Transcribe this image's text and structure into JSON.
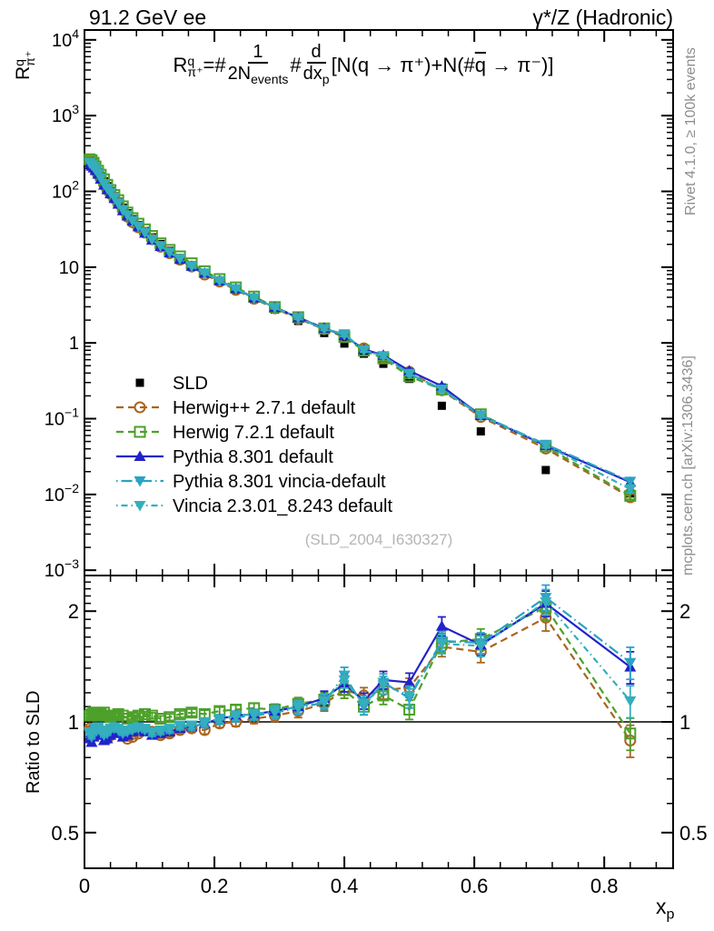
{
  "header": {
    "title_left": "91.2 GeV ee",
    "title_right": "γ*/Z (Hadronic)"
  },
  "side_notes": {
    "rivet": "Rivet 4.1.0, ≥ 100k events",
    "mcplots": "mcplots.cern.ch [arXiv:1306.3436]"
  },
  "watermark": "(SLD_2004_I630327)",
  "axes": {
    "main_ylabel": {
      "base": "R",
      "sup": "q",
      "sub": "π⁺"
    },
    "ratio_ylabel": "Ratio to SLD",
    "xlabel": {
      "base": "x",
      "sub": "p"
    }
  },
  "formula": {
    "r_base": "R",
    "r_sup": "q",
    "r_sub": "π⁺",
    "eq": "=#",
    "frac1_num": "1",
    "frac1_den": "2N",
    "frac1_den_sub": "events",
    "hash": "#",
    "frac2_num": "d",
    "frac2_den": "dx",
    "frac2_den_sub": "p",
    "rhs_a": "[N(q → π⁺)+N(#",
    "rhs_qbar": "q",
    "rhs_b": " → π⁻)]"
  },
  "chart_data": {
    "type": "line",
    "title": "91.2 GeV ee — charged pion scaled momentum spectrum vs SLD",
    "xlabel": "x_p",
    "ylabel_main": "R^q_π+",
    "ylabel_ratio": "Ratio to SLD",
    "x_min": 0,
    "x_max": 0.906,
    "main_ylog_top": 4.13,
    "main_ylog_bot": -3.07,
    "ratio_min": 0.4,
    "ratio_max": 2.5,
    "legend_position": "upper-left-inside",
    "grid": false,
    "x": [
      0.008,
      0.011,
      0.014,
      0.017,
      0.021,
      0.025,
      0.03,
      0.035,
      0.04,
      0.046,
      0.052,
      0.059,
      0.066,
      0.074,
      0.083,
      0.093,
      0.104,
      0.117,
      0.131,
      0.147,
      0.165,
      0.185,
      0.208,
      0.233,
      0.261,
      0.293,
      0.329,
      0.369,
      0.4,
      0.43,
      0.46,
      0.5,
      0.55,
      0.61,
      0.71,
      0.84
    ],
    "sld": {
      "label": "SLD",
      "color": "#000000",
      "marker": "square-filled",
      "values": [
        255,
        245,
        225,
        203,
        180,
        158,
        136,
        117,
        101,
        86,
        73,
        61,
        51.5,
        43,
        36,
        30,
        24.8,
        20.2,
        16.4,
        13.2,
        10.6,
        8.4,
        6.5,
        5.0,
        3.75,
        2.75,
        1.95,
        1.35,
        0.98,
        0.72,
        0.53,
        0.335,
        0.148,
        0.068,
        0.021,
        0.0103
      ]
    },
    "series": [
      {
        "label": "Herwig++ 2.7.1 default",
        "color": "#aa6420",
        "line": "dash",
        "marker": "circle-open",
        "ratio_to_sld": [
          0.96,
          0.95,
          0.93,
          0.92,
          0.93,
          0.94,
          0.92,
          0.9,
          0.92,
          0.94,
          0.95,
          0.93,
          0.9,
          0.91,
          0.93,
          0.95,
          0.94,
          0.92,
          0.93,
          0.95,
          0.96,
          0.95,
          0.99,
          1.0,
          1.02,
          1.04,
          1.07,
          1.12,
          1.22,
          1.18,
          1.22,
          1.24,
          1.6,
          1.55,
          1.92,
          0.89
        ]
      },
      {
        "label": "Herwig 7.2.1 default",
        "color": "#4da02a",
        "line": "dash",
        "marker": "square-open",
        "ratio_to_sld": [
          1.04,
          1.05,
          1.06,
          1.05,
          1.04,
          1.05,
          1.06,
          1.04,
          1.03,
          1.04,
          1.05,
          1.04,
          1.02,
          1.03,
          1.04,
          1.05,
          1.04,
          1.02,
          1.03,
          1.05,
          1.06,
          1.05,
          1.07,
          1.08,
          1.09,
          1.08,
          1.12,
          1.15,
          1.22,
          1.1,
          1.18,
          1.08,
          1.64,
          1.68,
          2.05,
          0.93
        ]
      },
      {
        "label": "Pythia 8.301 default",
        "color": "#2222cc",
        "line": "solid",
        "marker": "triangle-up",
        "ratio_to_sld": [
          0.9,
          0.88,
          0.91,
          0.93,
          0.94,
          0.92,
          0.89,
          0.9,
          0.92,
          0.94,
          0.93,
          0.91,
          0.92,
          0.94,
          0.95,
          0.94,
          0.92,
          0.93,
          0.94,
          0.96,
          0.97,
          0.99,
          1.02,
          1.04,
          1.05,
          1.07,
          1.1,
          1.16,
          1.27,
          1.14,
          1.3,
          1.28,
          1.82,
          1.62,
          2.1,
          1.41
        ]
      },
      {
        "label": "Pythia 8.301 vincia-default",
        "color": "#2aa2c4",
        "line": "dashdot",
        "marker": "triangle-down",
        "ratio_to_sld": [
          0.93,
          0.91,
          0.93,
          0.95,
          0.96,
          0.94,
          0.92,
          0.93,
          0.95,
          0.96,
          0.95,
          0.93,
          0.94,
          0.95,
          0.96,
          0.95,
          0.93,
          0.94,
          0.95,
          0.97,
          0.97,
          0.99,
          1.01,
          1.03,
          1.04,
          1.06,
          1.09,
          1.13,
          1.34,
          1.1,
          1.28,
          1.16,
          1.66,
          1.64,
          2.18,
          1.45
        ]
      },
      {
        "label": "Vincia 2.3.01_8.243 default",
        "color": "#35aebe",
        "line": "dashdot2",
        "marker": "triangle-down",
        "ratio_to_sld": [
          0.94,
          0.92,
          0.94,
          0.96,
          0.97,
          0.95,
          0.93,
          0.94,
          0.96,
          0.97,
          0.96,
          0.94,
          0.95,
          0.96,
          0.97,
          0.96,
          0.94,
          0.95,
          0.96,
          0.98,
          0.98,
          1.0,
          1.02,
          1.04,
          1.05,
          1.07,
          1.1,
          1.14,
          1.3,
          1.12,
          1.26,
          1.18,
          1.63,
          1.61,
          2.12,
          1.14
        ]
      }
    ],
    "err_frac": [
      0.012,
      0.012,
      0.012,
      0.012,
      0.012,
      0.012,
      0.012,
      0.012,
      0.012,
      0.012,
      0.012,
      0.012,
      0.012,
      0.012,
      0.015,
      0.015,
      0.018,
      0.018,
      0.02,
      0.02,
      0.022,
      0.025,
      0.025,
      0.028,
      0.03,
      0.035,
      0.04,
      0.045,
      0.05,
      0.05,
      0.055,
      0.06,
      0.06,
      0.065,
      0.08,
      0.1
    ],
    "yticks_main_labels": [
      "10^{4}",
      "10^{3}",
      "10^{2}",
      "10",
      "1",
      "10^{−1}",
      "10^{−2}",
      "10^{−3}"
    ],
    "yticks_main_values": [
      10000,
      1000,
      100,
      10,
      1,
      0.1,
      0.01,
      0.001
    ],
    "yticks_ratio_labels": [
      "2",
      "1",
      "0.5"
    ],
    "yticks_ratio_values": [
      2,
      1,
      0.5
    ],
    "xticks_labels": [
      "0",
      "0.2",
      "0.4",
      "0.6",
      "0.8"
    ],
    "xticks_values": [
      0,
      0.2,
      0.4,
      0.6,
      0.8
    ],
    "ratio_reference": 1
  }
}
